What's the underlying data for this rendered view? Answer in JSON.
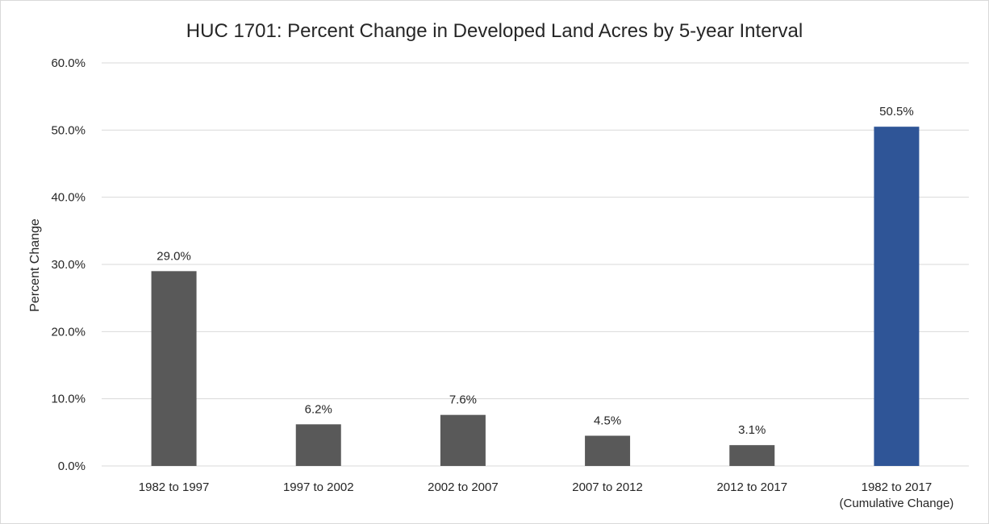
{
  "chart_data": {
    "type": "bar",
    "title": "HUC 1701: Percent Change in Developed Land Acres by 5-year Interval",
    "xlabel": "",
    "ylabel": "Percent Change",
    "categories": [
      "1982  to 1997",
      "1997  to 2002",
      "2002  to 2007",
      "2007  to 2012",
      "2012  to 2017",
      "1982 to 2017\n(Cumulative Change)"
    ],
    "values": [
      29.0,
      6.2,
      7.6,
      4.5,
      3.1,
      50.5
    ],
    "data_labels": [
      "29.0%",
      "6.2%",
      "7.6%",
      "4.5%",
      "3.1%",
      "50.5%"
    ],
    "ylim": [
      0,
      60
    ],
    "yticks": [
      0,
      10,
      20,
      30,
      40,
      50,
      60
    ],
    "ytick_labels": [
      "0.0%",
      "10.0%",
      "20.0%",
      "30.0%",
      "40.0%",
      "50.0%",
      "60.0%"
    ],
    "grid": true,
    "legend": "none",
    "colors": {
      "bars": [
        "#595959",
        "#595959",
        "#595959",
        "#595959",
        "#595959",
        "#2f5597"
      ],
      "gridline": "#d9d9d9",
      "text": "#262626"
    }
  }
}
